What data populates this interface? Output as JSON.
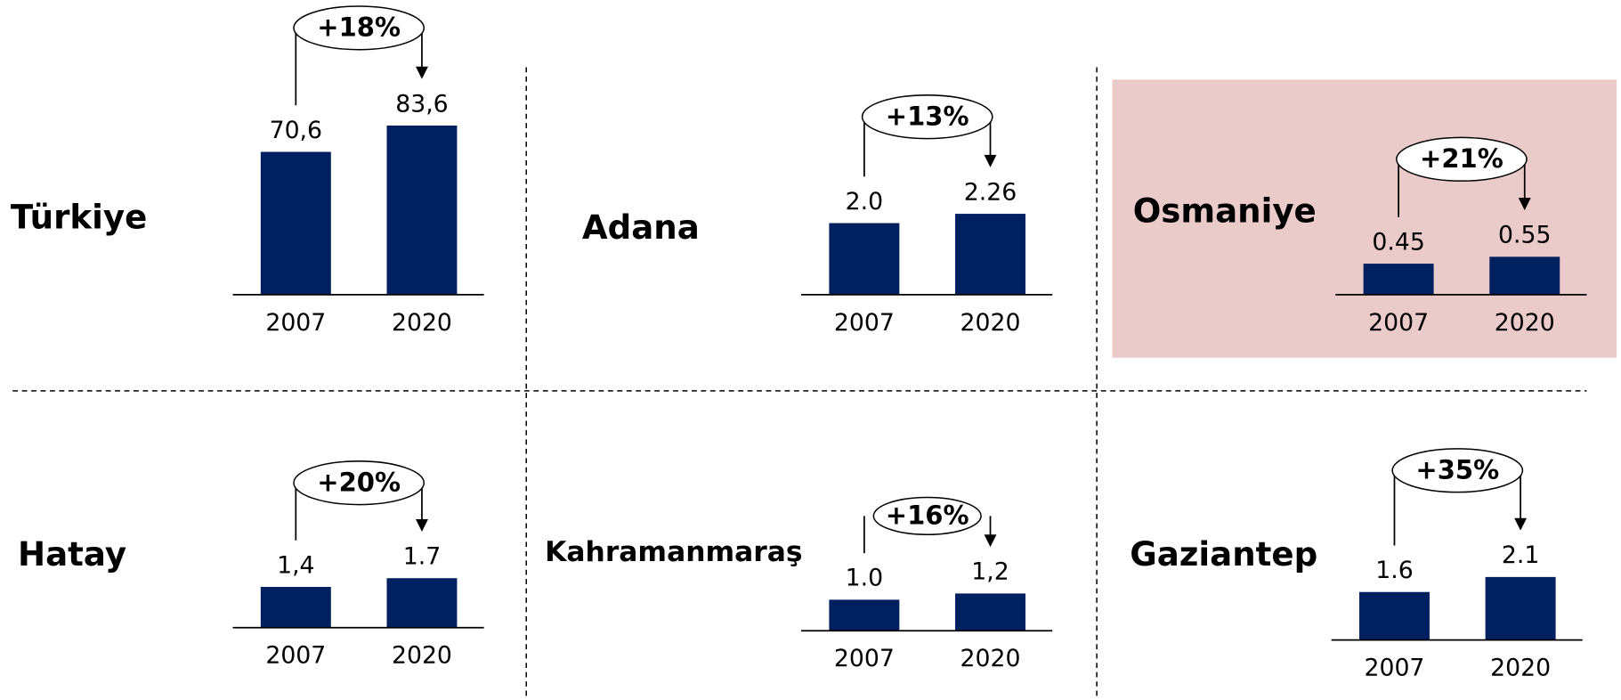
{
  "chart_data": [
    {
      "type": "bar",
      "title": "Türkiye",
      "categories": [
        "2007",
        "2020"
      ],
      "values": [
        70.6,
        83.6
      ],
      "value_labels": [
        "70,6",
        "83,6"
      ],
      "annotation": "+18%",
      "color": "#002060",
      "ylim": [
        0,
        92
      ]
    },
    {
      "type": "bar",
      "title": "Adana",
      "categories": [
        "2007",
        "2020"
      ],
      "values": [
        2.0,
        2.26
      ],
      "value_labels": [
        "2.0",
        "2.26"
      ],
      "annotation": "+13%",
      "color": "#002060",
      "ylim": [
        0,
        5.2
      ]
    },
    {
      "type": "bar",
      "title": "Osmaniye",
      "categories": [
        "2007",
        "2020"
      ],
      "values": [
        0.45,
        0.55
      ],
      "value_labels": [
        "0.45",
        "0.55"
      ],
      "annotation": "+21%",
      "color": "#002060",
      "ylim": [
        0,
        2.7
      ],
      "background": "#ebcaca"
    },
    {
      "type": "bar",
      "title": "Hatay",
      "categories": [
        "2007",
        "2020"
      ],
      "values": [
        1.4,
        1.7
      ],
      "value_labels": [
        "1,4",
        "1.7"
      ],
      "annotation": "+20%",
      "color": "#002060",
      "ylim": [
        0,
        6.4
      ]
    },
    {
      "type": "bar",
      "title": "Kahramanmaraş",
      "categories": [
        "2007",
        "2020"
      ],
      "values": [
        1.0,
        1.2
      ],
      "value_labels": [
        "1.0",
        "1,2"
      ],
      "annotation": "+16%",
      "color": "#002060",
      "ylim": [
        0,
        6
      ]
    },
    {
      "type": "bar",
      "title": "Gaziantep",
      "categories": [
        "2007",
        "2020"
      ],
      "values": [
        1.6,
        2.1
      ],
      "value_labels": [
        "1.6",
        "2.1"
      ],
      "annotation": "+35%",
      "color": "#002060",
      "ylim": [
        0,
        6.2
      ]
    }
  ]
}
